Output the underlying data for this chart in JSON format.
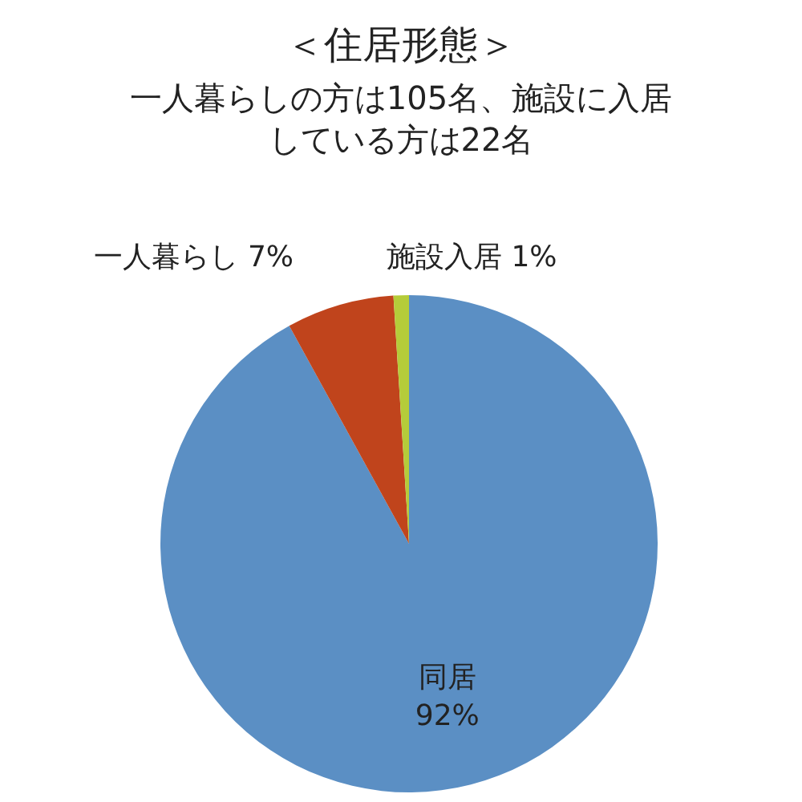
{
  "chart_data": {
    "type": "pie",
    "title": "＜住居形態＞",
    "subtitle": "一人暮らしの方は105名、施設に入居している方は22名",
    "categories": [
      "同居",
      "一人暮らし",
      "施設入居"
    ],
    "values": [
      92,
      7,
      1
    ],
    "colors": [
      "#5b8fc4",
      "#c0441c",
      "#b5cc3a"
    ],
    "value_labels": [
      "92%",
      "7%",
      "1%"
    ]
  }
}
